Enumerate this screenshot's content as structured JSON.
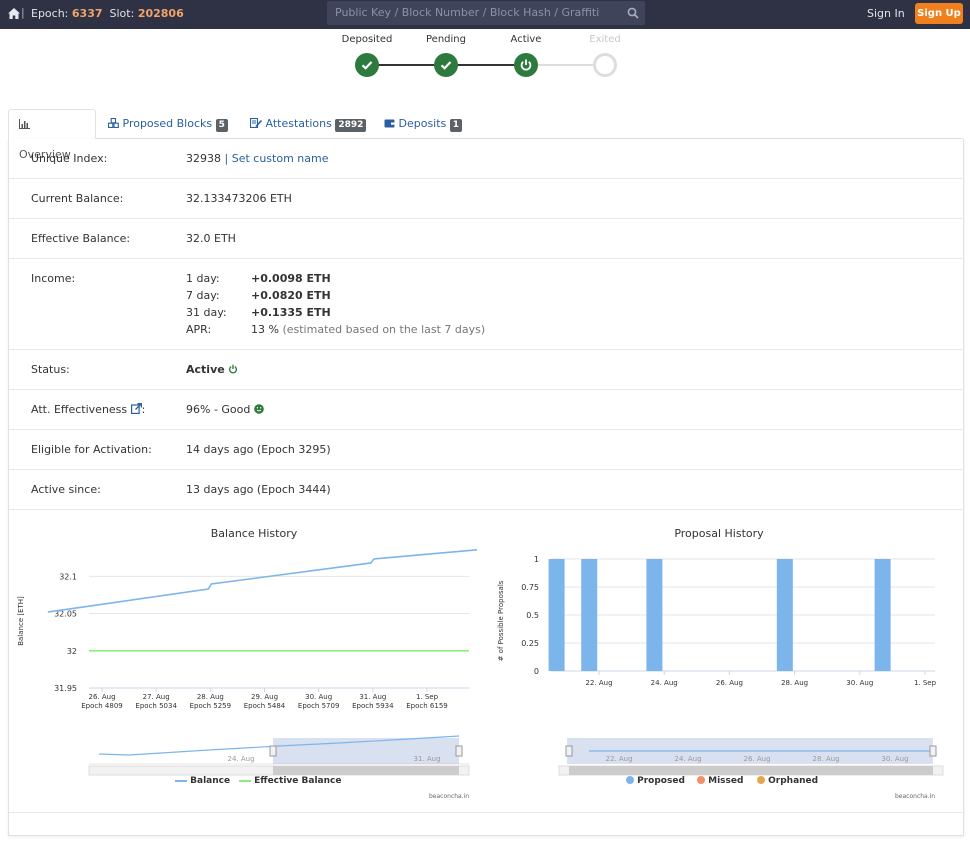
{
  "topbar": {
    "epoch_label": "Epoch:",
    "epoch_value": "6337",
    "slot_label": "Slot:",
    "slot_value": "202806",
    "search_placeholder": "Public Key / Block Number / Block Hash / Graffiti",
    "sign_in": "Sign In",
    "sign_up": "Sign Up"
  },
  "steps": [
    {
      "label": "Deposited",
      "state": "done"
    },
    {
      "label": "Pending",
      "state": "done"
    },
    {
      "label": "Active",
      "state": "active"
    },
    {
      "label": "Exited",
      "state": "disabled"
    }
  ],
  "tabs": [
    {
      "label": "Overview",
      "badge": "",
      "active": true
    },
    {
      "label": "Proposed Blocks",
      "badge": "5"
    },
    {
      "label": "Attestations",
      "badge": "2892"
    },
    {
      "label": "Deposits",
      "badge": "1"
    }
  ],
  "overview": {
    "unique_index_label": "Unique Index:",
    "unique_index_value": "32938",
    "set_custom_name": "Set custom name",
    "current_balance_label": "Current Balance:",
    "current_balance_value": "32.133473206 ETH",
    "effective_balance_label": "Effective Balance:",
    "effective_balance_value": "32.0 ETH",
    "income_label": "Income:",
    "income": [
      {
        "period": "1 day:",
        "value": "+0.0098 ETH"
      },
      {
        "period": "7 day:",
        "value": "+0.0820 ETH"
      },
      {
        "period": "31 day:",
        "value": "+0.1335 ETH"
      }
    ],
    "apr_label": "APR:",
    "apr_value": "13 %",
    "apr_note": "(estimated based on the last 7 days)",
    "status_label": "Status:",
    "status_value": "Active",
    "att_label": "Att. Effectiveness",
    "att_colon": ":",
    "att_value": "96% - Good",
    "eligible_label": "Eligible for Activation:",
    "eligible_value": "14 days ago (Epoch 3295)",
    "active_since_label": "Active since:",
    "active_since_value": "13 days ago (Epoch 3444)"
  },
  "charts": {
    "balance_title": "Balance History",
    "proposal_title": "Proposal History",
    "credit": "beaconcha.in",
    "balance_ylabel": "Balance [ETH]",
    "proposal_ylabel": "# of Possible Proposals"
  },
  "chart_data": [
    {
      "type": "line",
      "title": "Balance History",
      "ylabel": "Balance [ETH]",
      "ylim": [
        31.95,
        32.13
      ],
      "yticks": [
        "32.1",
        "32.05",
        "32",
        "31.95"
      ],
      "xticks": [
        {
          "date": "26. Aug",
          "epoch": "Epoch 4809"
        },
        {
          "date": "27. Aug",
          "epoch": "Epoch 5034"
        },
        {
          "date": "28. Aug",
          "epoch": "Epoch 5259"
        },
        {
          "date": "29. Aug",
          "epoch": "Epoch 5484"
        },
        {
          "date": "30. Aug",
          "epoch": "Epoch 5709"
        },
        {
          "date": "31. Aug",
          "epoch": "Epoch 5934"
        },
        {
          "date": "1. Sep",
          "epoch": "Epoch 6159"
        }
      ],
      "series": [
        {
          "name": "Balance",
          "color": "#7cb5ec",
          "x": [
            "25. Aug",
            "28. Aug",
            "31. Aug",
            "1. Sep"
          ],
          "y": [
            32.052,
            32.087,
            32.122,
            32.133
          ]
        },
        {
          "name": "Effective Balance",
          "color": "#90ed7d",
          "x": [
            "25. Aug",
            "1. Sep"
          ],
          "y": [
            32.0,
            32.0
          ]
        }
      ],
      "navigator_labels": [
        "24. Aug",
        "31. Aug"
      ],
      "legend": "bottom"
    },
    {
      "type": "bar",
      "title": "Proposal History",
      "ylabel": "# of Possible Proposals",
      "ylim": [
        0,
        1
      ],
      "yticks": [
        "1",
        "0.75",
        "0.5",
        "0.25",
        "0"
      ],
      "xticks": [
        "22. Aug",
        "24. Aug",
        "26. Aug",
        "28. Aug",
        "30. Aug",
        "1. Sep"
      ],
      "series": [
        {
          "name": "Proposed",
          "color": "#7cb5ec",
          "values": [
            1,
            1,
            1,
            1,
            1
          ]
        },
        {
          "name": "Missed",
          "color": "#f45b5b",
          "values": []
        },
        {
          "name": "Orphaned",
          "color": "#e4a84b",
          "values": []
        }
      ],
      "navigator_labels": [
        "22. Aug",
        "24. Aug",
        "26. Aug",
        "28. Aug",
        "30. Aug"
      ],
      "legend": "bottom"
    }
  ]
}
